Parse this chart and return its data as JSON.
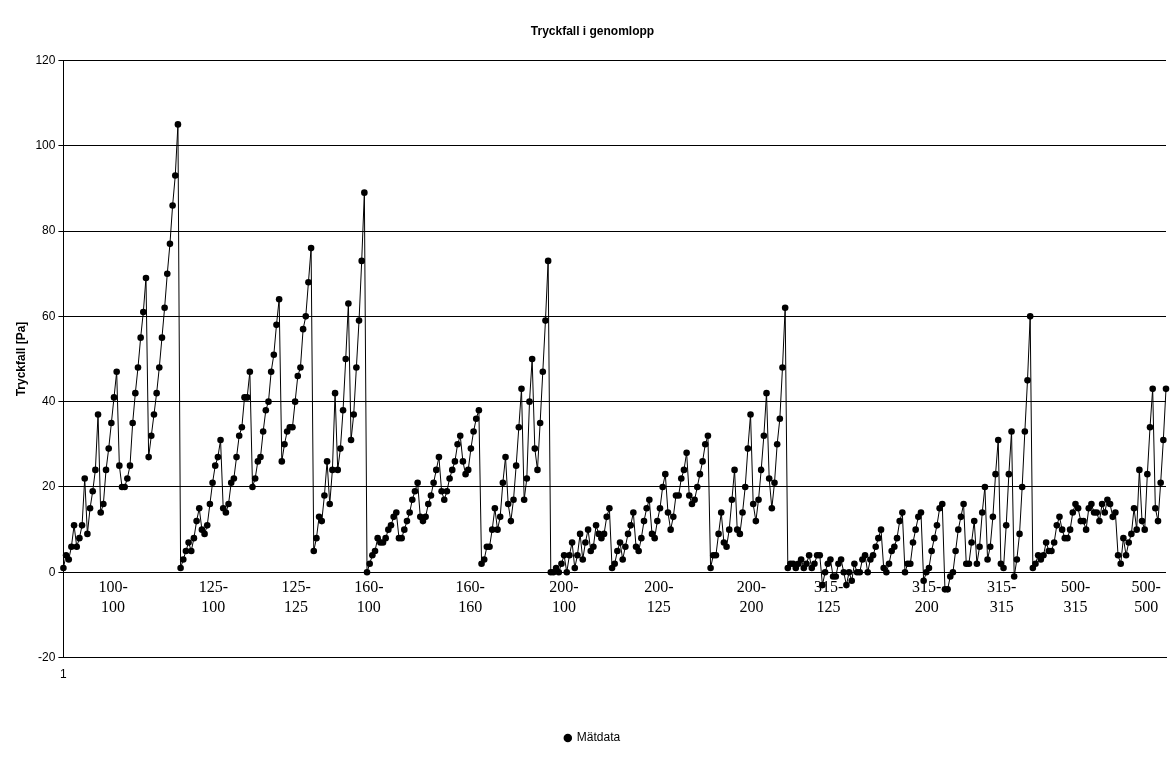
{
  "chart_data": {
    "type": "line",
    "title": "Tryckfall i genomlopp",
    "ylabel": "Tryckfall [Pa]",
    "categories": [
      "1",
      null,
      null,
      null,
      null,
      null,
      null,
      null,
      null,
      null,
      null,
      null,
      null,
      null,
      null,
      null,
      null,
      null,
      null,
      null,
      null,
      null,
      null,
      null,
      null,
      null,
      null,
      null,
      null,
      null,
      null,
      null,
      null,
      null,
      null,
      null,
      null,
      null,
      null,
      null,
      null,
      null,
      null,
      null,
      null,
      null,
      null,
      null,
      null,
      null,
      null,
      null,
      null,
      null,
      null,
      null,
      null,
      null,
      null,
      null,
      null,
      null,
      null,
      null,
      null,
      null,
      null,
      null,
      null,
      null,
      null,
      null,
      null,
      null,
      null,
      null,
      null,
      null,
      null,
      null,
      null,
      null,
      null,
      null,
      null,
      null,
      null,
      null,
      null,
      null,
      null,
      null,
      null,
      null,
      null,
      null,
      null,
      null,
      null,
      null,
      null,
      null,
      null,
      null,
      null,
      null,
      null,
      null,
      null,
      null,
      null,
      null,
      null,
      null,
      null,
      null,
      null,
      null,
      null,
      null,
      null,
      null,
      null,
      null,
      null,
      null,
      null,
      null,
      null,
      null,
      null,
      null,
      null,
      null,
      null,
      null,
      null,
      null,
      null,
      null,
      null,
      null,
      null,
      null,
      null,
      null,
      null,
      null,
      null,
      null,
      null,
      null,
      null,
      null,
      null,
      null,
      null,
      null,
      null,
      null,
      null,
      null,
      null,
      null,
      null,
      null,
      null,
      null,
      null,
      null,
      null,
      null,
      null,
      null,
      null,
      null,
      null,
      null,
      null,
      null,
      null,
      null,
      null,
      null,
      null,
      null,
      null,
      null,
      null,
      null,
      null,
      null,
      null,
      null,
      null,
      null,
      null,
      null,
      null,
      null,
      null,
      null,
      null,
      null,
      null,
      null,
      null,
      null,
      null,
      null,
      null,
      null,
      null,
      null,
      null,
      null,
      null,
      null,
      null,
      null,
      null,
      null,
      null,
      null,
      null,
      null,
      null,
      null,
      null,
      null,
      null,
      null,
      null,
      null,
      null,
      null,
      null,
      null,
      null,
      null,
      null,
      null,
      null,
      null,
      null,
      null,
      null,
      null,
      null,
      null,
      null,
      null,
      null,
      null,
      null,
      null,
      null,
      null,
      null,
      null,
      null,
      null,
      null,
      null,
      null,
      null,
      null,
      null,
      null,
      null,
      null,
      null,
      null,
      null,
      null,
      null,
      null,
      null,
      null,
      null,
      null,
      null,
      null,
      null,
      null,
      null,
      null,
      null,
      null,
      null,
      null,
      null,
      null,
      null,
      null,
      null,
      null,
      null,
      null,
      null,
      null,
      null,
      null,
      null,
      null,
      null,
      null,
      null,
      null,
      null,
      null,
      null,
      null,
      null,
      null,
      null,
      null,
      null,
      null,
      null,
      null,
      null,
      null,
      null,
      null,
      null,
      null,
      null,
      null,
      null,
      null,
      null,
      null,
      null,
      null,
      null,
      null,
      null,
      null,
      null,
      null,
      null,
      null,
      null,
      null,
      null,
      null,
      null,
      null,
      null,
      null,
      null,
      null,
      null,
      null,
      null,
      null,
      null,
      null,
      null,
      null,
      null,
      null,
      null,
      null,
      null,
      null,
      null,
      null,
      null,
      null,
      null,
      null,
      null,
      null,
      null,
      null,
      null,
      null,
      null,
      null,
      null,
      null,
      null,
      null,
      null,
      null,
      null,
      null,
      null,
      null,
      null,
      null,
      null,
      null,
      null,
      null,
      null,
      null,
      null,
      null,
      null,
      null,
      null,
      null,
      null,
      null,
      null,
      null,
      null,
      null,
      null,
      null,
      null,
      null
    ],
    "ylim": [
      -20,
      120
    ],
    "yticks": [
      -20,
      0,
      20,
      40,
      60,
      80,
      100,
      120
    ],
    "grid": "y",
    "legend": "bottom",
    "marker": "circle",
    "line_style": "solid",
    "series": [
      {
        "name": "Mätdata",
        "color": "#000000",
        "values": [
          1,
          4,
          3,
          6,
          11,
          6,
          8,
          11,
          22,
          9,
          15,
          19,
          24,
          37,
          14,
          16,
          24,
          29,
          35,
          41,
          47,
          25,
          20,
          20,
          22,
          25,
          35,
          42,
          48,
          55,
          61,
          69,
          27,
          32,
          37,
          42,
          48,
          55,
          62,
          70,
          77,
          86,
          93,
          105,
          1,
          3,
          5,
          7,
          5,
          8,
          12,
          15,
          10,
          9,
          11,
          16,
          21,
          25,
          27,
          31,
          15,
          14,
          16,
          21,
          22,
          27,
          32,
          34,
          41,
          41,
          47,
          20,
          22,
          26,
          27,
          33,
          38,
          40,
          47,
          51,
          58,
          64,
          26,
          30,
          33,
          34,
          34,
          40,
          46,
          48,
          57,
          60,
          68,
          76,
          5,
          8,
          13,
          12,
          18,
          26,
          16,
          24,
          42,
          24,
          29,
          38,
          50,
          63,
          31,
          37,
          48,
          59,
          73,
          89,
          0,
          2,
          4,
          5,
          8,
          7,
          7,
          8,
          10,
          11,
          13,
          14,
          8,
          8,
          10,
          12,
          14,
          17,
          19,
          21,
          13,
          12,
          13,
          16,
          18,
          21,
          24,
          27,
          19,
          17,
          19,
          22,
          24,
          26,
          30,
          32,
          26,
          23,
          24,
          29,
          33,
          36,
          38,
          2,
          3,
          6,
          6,
          10,
          15,
          10,
          13,
          21,
          27,
          16,
          12,
          17,
          25,
          34,
          43,
          17,
          22,
          40,
          50,
          29,
          24,
          35,
          47,
          59,
          73,
          0,
          0,
          1,
          0,
          2,
          4,
          0,
          4,
          7,
          1,
          4,
          9,
          3,
          7,
          10,
          5,
          6,
          11,
          9,
          8,
          9,
          13,
          15,
          1,
          2,
          5,
          7,
          3,
          6,
          9,
          11,
          14,
          6,
          5,
          8,
          12,
          15,
          17,
          9,
          8,
          12,
          15,
          20,
          23,
          14,
          10,
          13,
          18,
          18,
          22,
          24,
          28,
          18,
          16,
          17,
          20,
          23,
          26,
          30,
          32,
          1,
          4,
          4,
          9,
          14,
          7,
          6,
          10,
          17,
          24,
          10,
          9,
          14,
          20,
          29,
          37,
          16,
          12,
          17,
          24,
          32,
          42,
          22,
          15,
          21,
          30,
          36,
          48,
          62,
          1,
          2,
          2,
          1,
          2,
          3,
          1,
          2,
          4,
          1,
          2,
          4,
          4,
          -3,
          0,
          2,
          3,
          -1,
          -1,
          2,
          3,
          0,
          -3,
          0,
          -2,
          2,
          0,
          0,
          3,
          4,
          0,
          3,
          4,
          6,
          8,
          10,
          1,
          0,
          2,
          5,
          6,
          8,
          12,
          14,
          0,
          2,
          2,
          7,
          10,
          13,
          14,
          -2,
          0,
          1,
          5,
          8,
          11,
          15,
          16,
          -4,
          -4,
          -1,
          0,
          5,
          10,
          13,
          16,
          2,
          2,
          7,
          12,
          2,
          6,
          14,
          20,
          3,
          6,
          13,
          23,
          31,
          2,
          1,
          11,
          23,
          33,
          -1,
          3,
          9,
          20,
          33,
          45,
          60,
          1,
          2,
          4,
          3,
          4,
          7,
          5,
          5,
          7,
          11,
          13,
          10,
          8,
          8,
          10,
          14,
          16,
          15,
          12,
          12,
          10,
          15,
          16,
          14,
          14,
          12,
          16,
          14,
          17,
          16,
          13,
          14,
          4,
          2,
          8,
          4,
          7,
          9,
          15,
          10,
          24,
          12,
          10,
          23,
          34,
          43,
          15,
          12,
          21,
          31,
          43
        ]
      }
    ],
    "annotations": [
      "100-\n100",
      "125-\n100",
      "125-\n125",
      "160-\n100",
      "160-\n160",
      "200-\n100",
      "200-\n125",
      "200-\n200",
      "315-\n125",
      "315-\n200",
      "315-\n315",
      "500-\n315",
      "500-\n500"
    ]
  }
}
